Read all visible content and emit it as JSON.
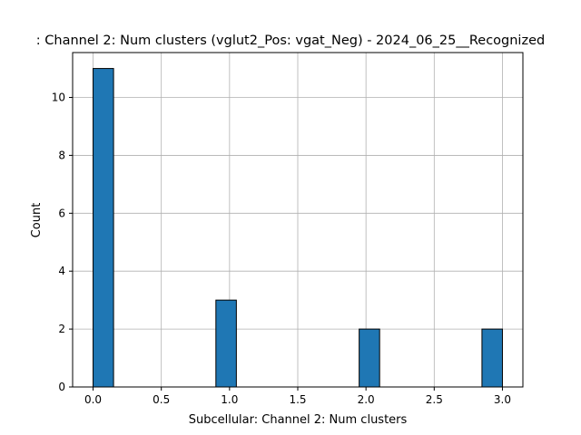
{
  "chart_data": {
    "type": "bar",
    "title": ": Channel 2: Num clusters (vglut2_Pos: vgat_Neg) - 2024_06_25__Recognized",
    "xlabel": "Subcellular: Channel 2: Num clusters",
    "ylabel": "Count",
    "xlim": [
      -0.15,
      3.15
    ],
    "ylim": [
      0,
      11.55
    ],
    "bin_width": 0.15,
    "bins": [
      {
        "x0": 0.0,
        "x1": 0.15,
        "count": 11
      },
      {
        "x0": 0.9,
        "x1": 1.05,
        "count": 3
      },
      {
        "x0": 1.95,
        "x1": 2.1,
        "count": 2
      },
      {
        "x0": 2.85,
        "x1": 3.0,
        "count": 2
      }
    ],
    "xticks": [
      "0.0",
      "0.5",
      "1.0",
      "1.5",
      "2.0",
      "2.5",
      "3.0"
    ],
    "xtick_values": [
      0,
      0.5,
      1.0,
      1.5,
      2.0,
      2.5,
      3.0
    ],
    "yticks": [
      "0",
      "2",
      "4",
      "6",
      "8",
      "10"
    ],
    "ytick_values": [
      0,
      2,
      4,
      6,
      8,
      10
    ],
    "grid": true,
    "bar_color": "#1f77b4",
    "edge_color": "#000000",
    "grid_color": "#b0b0b0"
  }
}
